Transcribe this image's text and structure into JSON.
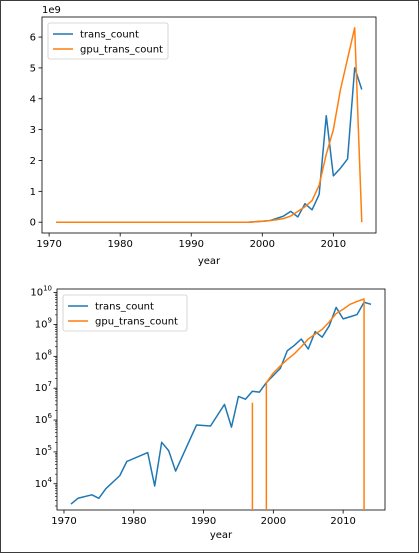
{
  "chart_data": [
    {
      "type": "line",
      "xlabel": "year",
      "ylabel": "",
      "y_offset_text": "1e9",
      "yscale": "linear",
      "xlim": [
        1969,
        2016
      ],
      "ylim": [
        -0.35,
        6.65
      ],
      "x_ticks": [
        1970,
        1980,
        1990,
        2000,
        2010
      ],
      "y_ticks": [
        0,
        1,
        2,
        3,
        4,
        5,
        6
      ],
      "legend": "top-left",
      "series": [
        {
          "name": "trans_count",
          "color": "#1f77b4",
          "points": [
            [
              1971,
              0
            ],
            [
              1980,
              0
            ],
            [
              1990,
              0
            ],
            [
              1998,
              0
            ],
            [
              2000,
              0.03
            ],
            [
              2001,
              0.05
            ],
            [
              2002,
              0.12
            ],
            [
              2003,
              0.2
            ],
            [
              2004,
              0.35
            ],
            [
              2005,
              0.17
            ],
            [
              2006,
              0.6
            ],
            [
              2007,
              0.4
            ],
            [
              2008,
              0.9
            ],
            [
              2009,
              3.45
            ],
            [
              2010,
              1.5
            ],
            [
              2011,
              1.75
            ],
            [
              2012,
              2.05
            ],
            [
              2013,
              5.0
            ],
            [
              2014,
              4.3
            ]
          ]
        },
        {
          "name": "gpu_trans_count",
          "color": "#ff7f0e",
          "points": [
            [
              1971,
              0
            ],
            [
              1980,
              0
            ],
            [
              1990,
              0
            ],
            [
              1998,
              0
            ],
            [
              2000,
              0.03
            ],
            [
              2001,
              0.05
            ],
            [
              2002,
              0.08
            ],
            [
              2003,
              0.12
            ],
            [
              2004,
              0.2
            ],
            [
              2005,
              0.35
            ],
            [
              2006,
              0.5
            ],
            [
              2007,
              0.7
            ],
            [
              2008,
              1.2
            ],
            [
              2009,
              2.2
            ],
            [
              2010,
              3.0
            ],
            [
              2011,
              4.3
            ],
            [
              2012,
              5.3
            ],
            [
              2013,
              6.3
            ],
            [
              2014,
              0
            ]
          ]
        }
      ]
    },
    {
      "type": "line",
      "xlabel": "year",
      "ylabel": "",
      "yscale": "log",
      "xlim": [
        1969,
        2016
      ],
      "ylim": [
        1500,
        13000000000
      ],
      "x_ticks": [
        1970,
        1980,
        1990,
        2000,
        2010
      ],
      "y_ticks": [
        "10^4",
        "10^5",
        "10^6",
        "10^7",
        "10^8",
        "10^9",
        "10^10"
      ],
      "legend": "top-left",
      "series": [
        {
          "name": "trans_count",
          "color": "#1f77b4",
          "points": [
            [
              1971,
              2300
            ],
            [
              1972,
              3500
            ],
            [
              1974,
              4500
            ],
            [
              1975,
              3500
            ],
            [
              1976,
              7000
            ],
            [
              1978,
              18000
            ],
            [
              1979,
              50000
            ],
            [
              1982,
              95000
            ],
            [
              1983,
              8500
            ],
            [
              1984,
              200000
            ],
            [
              1985,
              110000
            ],
            [
              1986,
              25000
            ],
            [
              1989,
              700000
            ],
            [
              1991,
              650000
            ],
            [
              1993,
              3100000
            ],
            [
              1994,
              600000
            ],
            [
              1995,
              5500000
            ],
            [
              1996,
              4500000
            ],
            [
              1997,
              8000000
            ],
            [
              1998,
              7500000
            ],
            [
              1999,
              15000000
            ],
            [
              2000,
              25000000
            ],
            [
              2001,
              42000000
            ],
            [
              2002,
              150000000
            ],
            [
              2003,
              220000000
            ],
            [
              2004,
              350000000
            ],
            [
              2005,
              170000000
            ],
            [
              2006,
              600000000
            ],
            [
              2007,
              400000000
            ],
            [
              2008,
              900000000
            ],
            [
              2009,
              3450000000
            ],
            [
              2010,
              1500000000
            ],
            [
              2011,
              1750000000
            ],
            [
              2012,
              2050000000
            ],
            [
              2013,
              5000000000
            ],
            [
              2014,
              4300000000
            ]
          ]
        },
        {
          "name": "gpu_trans_count",
          "color": "#ff7f0e",
          "points": [
            [
              1997,
              3500000
            ],
            [
              1997,
              1500
            ],
            null,
            [
              1999,
              1500
            ],
            [
              1999,
              15000000
            ],
            [
              2000,
              30000000
            ],
            [
              2001,
              50000000
            ],
            [
              2002,
              80000000
            ],
            [
              2003,
              120000000
            ],
            [
              2004,
              200000000
            ],
            [
              2005,
              350000000
            ],
            [
              2006,
              500000000
            ],
            [
              2007,
              700000000
            ],
            [
              2008,
              1200000000
            ],
            [
              2009,
              2200000000
            ],
            [
              2010,
              3000000000
            ],
            [
              2011,
              4300000000
            ],
            [
              2012,
              5300000000
            ],
            [
              2013,
              6300000000
            ],
            [
              2013,
              1500
            ]
          ]
        }
      ]
    }
  ]
}
